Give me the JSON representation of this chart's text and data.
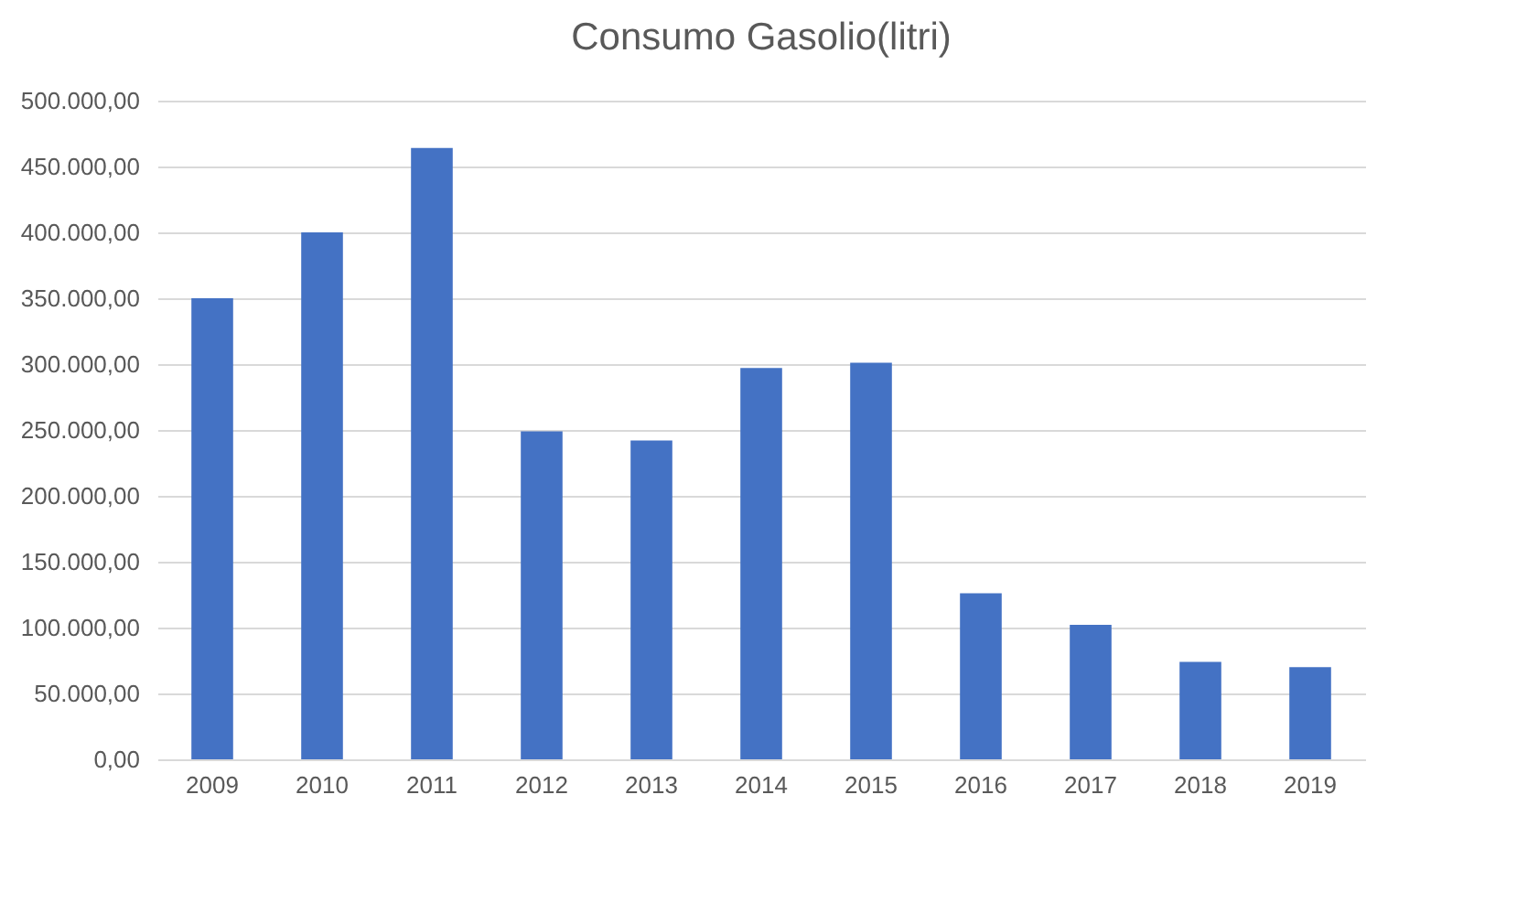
{
  "chart_data": {
    "type": "bar",
    "title": "Consumo Gasolio(litri)",
    "categories": [
      "2009",
      "2010",
      "2011",
      "2012",
      "2013",
      "2014",
      "2015",
      "2016",
      "2017",
      "2018",
      "2019"
    ],
    "values": [
      350000,
      400000,
      464000,
      249000,
      242000,
      297000,
      301000,
      126000,
      102000,
      74000,
      70000
    ],
    "color": "#4472c4",
    "ylim": [
      0,
      500000
    ],
    "yticks": [
      {
        "value": 0,
        "label": "0,00"
      },
      {
        "value": 50000,
        "label": "50.000,00"
      },
      {
        "value": 100000,
        "label": "100.000,00"
      },
      {
        "value": 150000,
        "label": "150.000,00"
      },
      {
        "value": 200000,
        "label": "200.000,00"
      },
      {
        "value": 250000,
        "label": "250.000,00"
      },
      {
        "value": 300000,
        "label": "300.000,00"
      },
      {
        "value": 350000,
        "label": "350.000,00"
      },
      {
        "value": 400000,
        "label": "400.000,00"
      },
      {
        "value": 450000,
        "label": "450.000,00"
      },
      {
        "value": 500000,
        "label": "500.000,00"
      }
    ],
    "grid": "y"
  }
}
